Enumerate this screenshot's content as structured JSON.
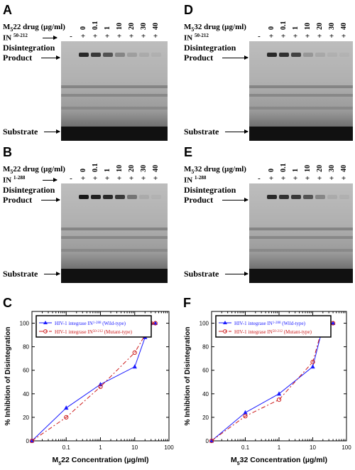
{
  "gel_panels": [
    {
      "letter": "A",
      "drug_label": "M",
      "drug_sub": "5",
      "drug_rest": "22 drug (µg/ml)",
      "enzyme_label": "IN",
      "enzyme_sup": "50-212",
      "concentrations": [
        "0",
        "0.1",
        "1",
        "10",
        "20",
        "30",
        "40"
      ],
      "enzyme_row": [
        "-",
        "+",
        "+",
        "+",
        "+",
        "+",
        "+",
        "+"
      ],
      "product_label_1": "Disintegration",
      "product_label_2": "Product",
      "substrate_label": "Substrate",
      "product_intensity": [
        0,
        0.85,
        0.75,
        0.6,
        0.3,
        0.15,
        0.08,
        0.05
      ]
    },
    {
      "letter": "D",
      "drug_label": "M",
      "drug_sub": "5",
      "drug_rest": "32 drug (µg/ml)",
      "enzyme_label": "IN",
      "enzyme_sup": "50-212",
      "concentrations": [
        "0",
        "0.1",
        "1",
        "10",
        "20",
        "30",
        "40"
      ],
      "enzyme_row": [
        "-",
        "+",
        "+",
        "+",
        "+",
        "+",
        "+",
        "+"
      ],
      "product_label_1": "Disintegration",
      "product_label_2": "Product",
      "substrate_label": "Substrate",
      "product_intensity": [
        0,
        0.85,
        0.8,
        0.7,
        0.2,
        0.1,
        0.05,
        0.03
      ]
    },
    {
      "letter": "B",
      "drug_label": "M",
      "drug_sub": "5",
      "drug_rest": "22 drug (µg/ml)",
      "enzyme_label": "IN",
      "enzyme_sup": "1-288",
      "concentrations": [
        "0",
        "0.1",
        "1",
        "10",
        "20",
        "30",
        "40"
      ],
      "enzyme_row": [
        "-",
        "+",
        "+",
        "+",
        "+",
        "+",
        "+",
        "+"
      ],
      "product_label_1": "Disintegration",
      "product_label_2": "Product",
      "substrate_label": "Substrate",
      "product_intensity": [
        0,
        0.95,
        0.9,
        0.85,
        0.75,
        0.4,
        0.08,
        0.04
      ]
    },
    {
      "letter": "E",
      "drug_label": "M",
      "drug_sub": "5",
      "drug_rest": "32 drug (µg/ml)",
      "enzyme_label": "IN",
      "enzyme_sup": "1-288",
      "concentrations": [
        "0",
        "0.1",
        "1",
        "10",
        "20",
        "30",
        "40"
      ],
      "enzyme_row": [
        "-",
        "+",
        "+",
        "+",
        "+",
        "+",
        "+",
        "+"
      ],
      "product_label_1": "Disintegration",
      "product_label_2": "Product",
      "substrate_label": "Substrate",
      "product_intensity": [
        0,
        0.85,
        0.8,
        0.75,
        0.6,
        0.3,
        0.08,
        0.05
      ]
    }
  ],
  "chart_data": [
    {
      "panel": "C",
      "type": "line",
      "xscale": "log",
      "xlim": [
        0.01,
        100
      ],
      "ylim": [
        0,
        110
      ],
      "xticks": [
        "0.1",
        "1",
        "10",
        "100"
      ],
      "yticks": [
        "0",
        "20",
        "40",
        "60",
        "80",
        "100"
      ],
      "ylabel": "% Inhibition of Disintegration",
      "xlabel_pre": "M",
      "xlabel_sub": "5",
      "xlabel_post": "22 Concentration (µg/ml)",
      "series": [
        {
          "name_pre": "HIV-1 integrase IN",
          "name_sup": "1-288",
          "name_post": "(Wild-type)",
          "color": "#1a1aff",
          "marker": "triangle",
          "dash": "",
          "x": [
            0.01,
            0.1,
            1,
            10,
            20,
            30,
            40
          ],
          "y": [
            0,
            28,
            48,
            63,
            88,
            100,
            100
          ]
        },
        {
          "name_pre": "HIV-1 integrase IN",
          "name_sup": "50-212",
          "name_post": "(Mutant-type)",
          "color": "#cc1a1a",
          "marker": "circle",
          "dash": "6,3,2,3",
          "x": [
            0.01,
            0.1,
            1,
            10,
            20,
            30,
            40
          ],
          "y": [
            0,
            20,
            46,
            75,
            90,
            100,
            100
          ]
        }
      ]
    },
    {
      "panel": "F",
      "type": "line",
      "xscale": "log",
      "xlim": [
        0.01,
        100
      ],
      "ylim": [
        0,
        110
      ],
      "xticks": [
        "0.1",
        "1",
        "10",
        "100"
      ],
      "yticks": [
        "0",
        "20",
        "40",
        "60",
        "80",
        "100"
      ],
      "ylabel": "% Inhibition of Disintegration",
      "xlabel_pre": "M",
      "xlabel_sub": "5",
      "xlabel_post": "32 Concentration (µg/ml)",
      "series": [
        {
          "name_pre": "HIV-1 integrase IN",
          "name_sup": "1-288",
          "name_post": "(Wild-type)",
          "color": "#1a1aff",
          "marker": "triangle",
          "dash": "",
          "x": [
            0.01,
            0.1,
            1,
            10,
            20,
            30,
            40
          ],
          "y": [
            0,
            24,
            40,
            63,
            97,
            100,
            100
          ]
        },
        {
          "name_pre": "HIV-1 integrase IN",
          "name_sup": "50-212",
          "name_post": "(Mutant-type)",
          "color": "#cc1a1a",
          "marker": "circle",
          "dash": "6,3,2,3",
          "x": [
            0.01,
            0.1,
            1,
            10,
            20,
            30,
            40
          ],
          "y": [
            0,
            21,
            35,
            67,
            98,
            100,
            100
          ]
        }
      ]
    }
  ]
}
